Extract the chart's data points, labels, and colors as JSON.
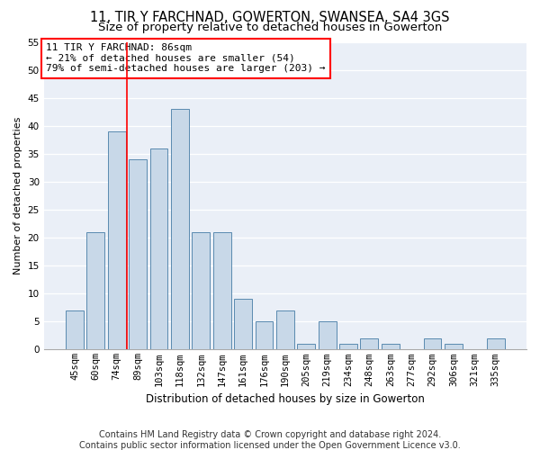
{
  "title": "11, TIR Y FARCHNAD, GOWERTON, SWANSEA, SA4 3GS",
  "subtitle": "Size of property relative to detached houses in Gowerton",
  "xlabel": "Distribution of detached houses by size in Gowerton",
  "ylabel": "Number of detached properties",
  "categories": [
    "45sqm",
    "60sqm",
    "74sqm",
    "89sqm",
    "103sqm",
    "118sqm",
    "132sqm",
    "147sqm",
    "161sqm",
    "176sqm",
    "190sqm",
    "205sqm",
    "219sqm",
    "234sqm",
    "248sqm",
    "263sqm",
    "277sqm",
    "292sqm",
    "306sqm",
    "321sqm",
    "335sqm"
  ],
  "values": [
    7,
    21,
    39,
    34,
    36,
    43,
    21,
    21,
    9,
    5,
    7,
    1,
    5,
    1,
    2,
    1,
    0,
    2,
    1,
    0,
    2
  ],
  "bar_color": "#c8d8e8",
  "bar_edge_color": "#5a8ab0",
  "vline_color": "red",
  "annotation_line1": "11 TIR Y FARCHNAD: 86sqm",
  "annotation_line2": "← 21% of detached houses are smaller (54)",
  "annotation_line3": "79% of semi-detached houses are larger (203) →",
  "annotation_box_color": "white",
  "annotation_box_edge": "red",
  "ylim": [
    0,
    55
  ],
  "yticks": [
    0,
    5,
    10,
    15,
    20,
    25,
    30,
    35,
    40,
    45,
    50,
    55
  ],
  "background_color": "#eaeff7",
  "footer_line1": "Contains HM Land Registry data © Crown copyright and database right 2024.",
  "footer_line2": "Contains public sector information licensed under the Open Government Licence v3.0.",
  "title_fontsize": 10.5,
  "subtitle_fontsize": 9.5,
  "annotation_fontsize": 8,
  "footer_fontsize": 7,
  "ylabel_fontsize": 8,
  "xlabel_fontsize": 8.5,
  "tick_fontsize": 7.5
}
